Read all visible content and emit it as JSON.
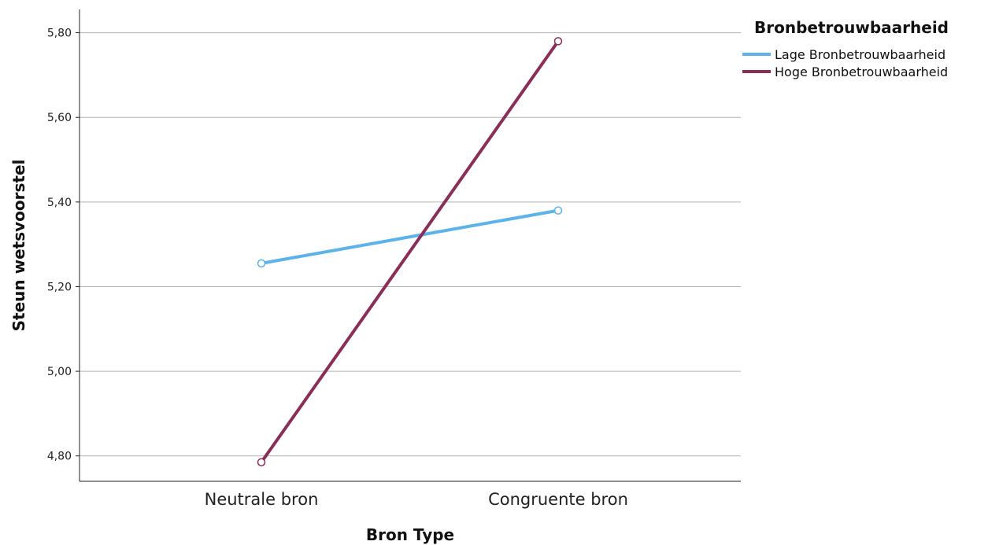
{
  "chart_data": {
    "type": "line",
    "categories": [
      "Neutrale bron",
      "Congruente bron"
    ],
    "series": [
      {
        "name": "Lage Bronbetrouwbaarheid",
        "values": [
          5.255,
          5.38
        ],
        "color": "#5BB3EA"
      },
      {
        "name": "Hoge Bronbetrouwbaarheid",
        "values": [
          4.785,
          5.78
        ],
        "color": "#8B2E57"
      }
    ],
    "xlabel": "Bron Type",
    "ylabel": "Steun wetsvoorstel",
    "ylim": [
      4.74,
      5.855
    ],
    "yticks": [
      4.8,
      5.0,
      5.2,
      5.4,
      5.6,
      5.8
    ],
    "ytick_labels": [
      "4,80",
      "5,00",
      "5,20",
      "5,40",
      "5,60",
      "5,80"
    ],
    "grid": true,
    "legend": {
      "title": "Bronbetrouwbaarheid",
      "placement": "top-right"
    },
    "gridline_color": "#b3b3b3"
  }
}
